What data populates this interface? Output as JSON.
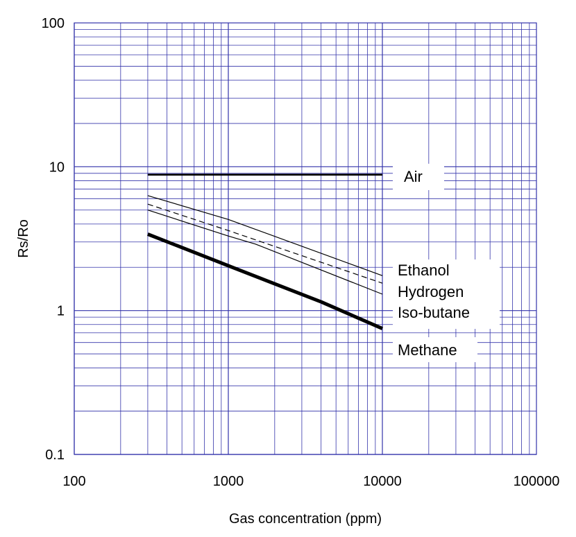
{
  "chart_data": {
    "type": "line",
    "xlabel": "Gas concentration (ppm)",
    "ylabel": "Rs/Ro",
    "xscale": "log",
    "yscale": "log",
    "xlim": [
      100,
      100000
    ],
    "ylim": [
      0.1,
      100
    ],
    "x_ticks": [
      "100",
      "1000",
      "10000",
      "100000"
    ],
    "y_ticks": [
      "100",
      "10",
      "1",
      "0.1"
    ],
    "grid": true,
    "grid_color": "#3333aa",
    "series": [
      {
        "name": "Air",
        "style": "solid",
        "weight": "medium",
        "x": [
          300,
          10000
        ],
        "y": [
          8.8,
          8.8
        ]
      },
      {
        "name": "Ethanol",
        "style": "solid",
        "weight": "thin",
        "x": [
          300,
          1000,
          10000
        ],
        "y": [
          6.3,
          4.3,
          1.75
        ]
      },
      {
        "name": "Hydrogen",
        "style": "dashed",
        "weight": "thin",
        "x": [
          300,
          1000,
          10000
        ],
        "y": [
          5.5,
          3.6,
          1.55
        ]
      },
      {
        "name": "Iso-butane",
        "style": "solid",
        "weight": "thin",
        "x": [
          300,
          1000,
          1500,
          10000
        ],
        "y": [
          5.0,
          3.3,
          2.9,
          1.3
        ]
      },
      {
        "name": "Methane",
        "style": "solid",
        "weight": "heavy",
        "x": [
          300,
          1000,
          4000,
          10000
        ],
        "y": [
          3.4,
          2.05,
          1.15,
          0.75
        ]
      }
    ],
    "line_color": "#000000"
  }
}
